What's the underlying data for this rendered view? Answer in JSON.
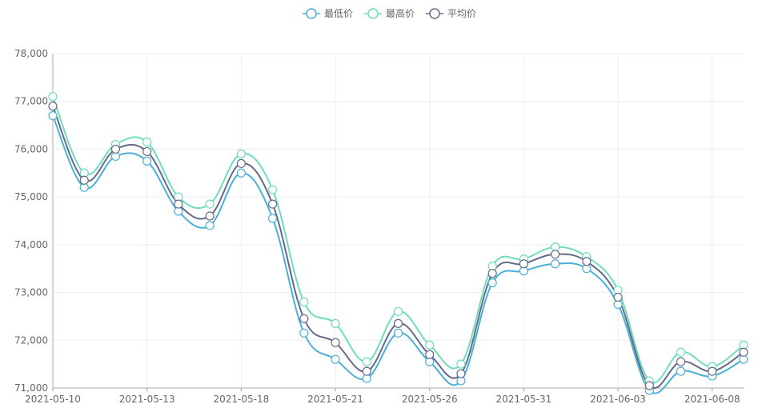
{
  "legend": {
    "items": [
      {
        "name": "最低价",
        "color": "#4ab0d9"
      },
      {
        "name": "最高价",
        "color": "#6fdcbc"
      },
      {
        "name": "平均价",
        "color": "#666a8a"
      }
    ]
  },
  "chart_data": {
    "type": "line",
    "title": "",
    "xlabel": "",
    "ylabel": "",
    "smooth": true,
    "ylim": [
      71000,
      78000
    ],
    "y_ticks": [
      "71,000",
      "72,000",
      "73,000",
      "74,000",
      "75,000",
      "76,000",
      "77,000",
      "78,000"
    ],
    "x_tick_labels": [
      "2021-05-10",
      "2021-05-13",
      "2021-05-18",
      "2021-05-21",
      "2021-05-26",
      "2021-05-31",
      "2021-06-03",
      "2021-06-08"
    ],
    "categories": [
      "2021-05-10",
      "2021-05-11",
      "2021-05-12",
      "2021-05-13",
      "2021-05-14",
      "2021-05-17",
      "2021-05-18",
      "2021-05-19",
      "2021-05-20",
      "2021-05-21",
      "2021-05-24",
      "2021-05-25",
      "2021-05-26",
      "2021-05-27",
      "2021-05-28",
      "2021-05-31",
      "2021-06-01",
      "2021-06-02",
      "2021-06-03",
      "2021-06-04",
      "2021-06-07",
      "2021-06-08",
      "2021-06-09"
    ],
    "x_tick_index": [
      0,
      3,
      6,
      9,
      12,
      15,
      18,
      21
    ],
    "grid": true,
    "legend_position": "top-center",
    "series": [
      {
        "name": "最低价",
        "color": "#4ab0d9",
        "values": [
          76700,
          75200,
          75850,
          75750,
          74700,
          74400,
          75500,
          74550,
          72150,
          71600,
          71200,
          72150,
          71550,
          71150,
          73200,
          73450,
          73600,
          73500,
          72750,
          70950,
          71350,
          71250,
          71600
        ]
      },
      {
        "name": "最高价",
        "color": "#6fdcbc",
        "values": [
          77100,
          75500,
          76100,
          76150,
          75000,
          74850,
          75900,
          75150,
          72800,
          72350,
          71550,
          72600,
          71900,
          71500,
          73550,
          73700,
          73950,
          73750,
          73050,
          71150,
          71750,
          71450,
          71900
        ]
      },
      {
        "name": "平均价",
        "color": "#666a8a",
        "values": [
          76900,
          75350,
          76000,
          75950,
          74850,
          74600,
          75700,
          74850,
          72450,
          71950,
          71350,
          72350,
          71700,
          71300,
          73400,
          73600,
          73800,
          73650,
          72900,
          71050,
          71550,
          71350,
          71750
        ]
      }
    ]
  }
}
